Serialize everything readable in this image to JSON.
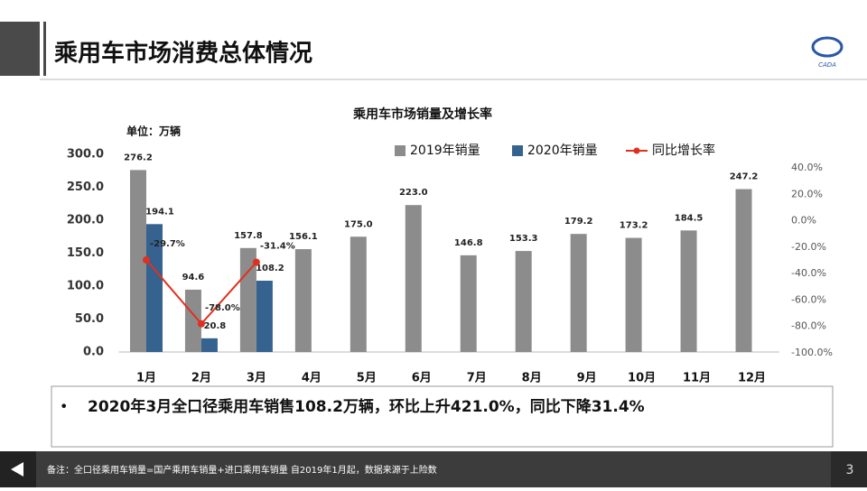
{
  "slide_title": "乘用车市场消费总体情况",
  "logo": "CADA",
  "chart_data": {
    "type": "bar",
    "title": "乘用车市场销量及增长率",
    "unit_label": "单位：万辆",
    "categories": [
      "1月",
      "2月",
      "3月",
      "4月",
      "5月",
      "6月",
      "7月",
      "8月",
      "9月",
      "10月",
      "11月",
      "12月"
    ],
    "series": [
      {
        "name": "2019年销量",
        "color": "#8c8c8c",
        "type": "bar",
        "values": [
          276.2,
          94.6,
          157.8,
          156.1,
          175.0,
          223.0,
          146.8,
          153.3,
          179.2,
          173.2,
          184.5,
          247.2
        ],
        "value_labels": [
          "276.2",
          "94.6",
          "157.8",
          "156.1",
          "175.0",
          "223.0",
          "146.8",
          "153.3",
          "179.2",
          "173.2",
          "184.5",
          "247.2"
        ]
      },
      {
        "name": "2020年销量",
        "color": "#35628f",
        "type": "bar",
        "values": [
          194.1,
          20.8,
          108.2,
          null,
          null,
          null,
          null,
          null,
          null,
          null,
          null,
          null
        ],
        "value_labels": [
          "194.1",
          "20.8",
          "108.2",
          null,
          null,
          null,
          null,
          null,
          null,
          null,
          null,
          null
        ]
      },
      {
        "name": "同比增长率",
        "color": "#e0301e",
        "type": "line",
        "axis": "y2",
        "values": [
          -29.7,
          -78.0,
          -31.4,
          null,
          null,
          null,
          null,
          null,
          null,
          null,
          null,
          null
        ],
        "value_labels": [
          "-29.7%",
          "-78.0%",
          "-31.4%",
          null,
          null,
          null,
          null,
          null,
          null,
          null,
          null,
          null
        ]
      }
    ],
    "ylim": [
      0,
      300
    ],
    "yticks": [
      {
        "value": 0,
        "label": "0.0"
      },
      {
        "value": 50,
        "label": "50.0"
      },
      {
        "value": 100,
        "label": "100.0"
      },
      {
        "value": 150,
        "label": "150.0"
      },
      {
        "value": 200,
        "label": "200.0"
      },
      {
        "value": 250,
        "label": "250.0"
      },
      {
        "value": 300,
        "label": "300.0"
      }
    ],
    "y2lim": [
      -100,
      40
    ],
    "y2ticks": [
      {
        "value": -100,
        "label": "-100.0%"
      },
      {
        "value": -80,
        "label": "-80.0%"
      },
      {
        "value": -60,
        "label": "-60.0%"
      },
      {
        "value": -40,
        "label": "-40.0%"
      },
      {
        "value": -20,
        "label": "-20.0%"
      },
      {
        "value": 0,
        "label": "0.0%"
      },
      {
        "value": 20,
        "label": "20.0%"
      },
      {
        "value": 40,
        "label": "40.0%"
      }
    ],
    "grid": false,
    "legend": "top"
  },
  "bullet": "2020年3月全口径乘用车销售108.2万辆，环比上升421.0%，同比下降31.4%",
  "footnote": "备注：全口径乘用车销量=国产乘用车销量+进口乘用车销量 自2019年1月起，数据来源于上险数",
  "page_number": "3"
}
